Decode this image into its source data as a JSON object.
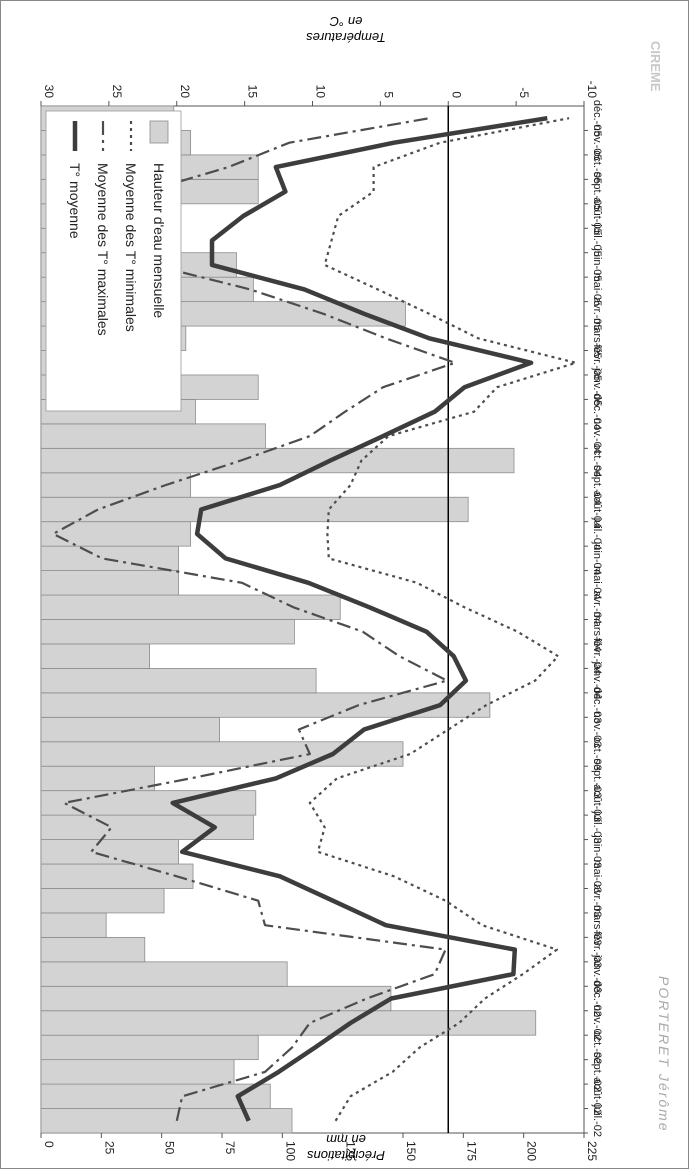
{
  "credit": "PORTERET Jérôme",
  "logo_text": "CIREME",
  "colors": {
    "bar_fill": "#d3d3d3",
    "bar_stroke": "#8c8c8c",
    "line_dark": "#3d3d3d",
    "line_dash": "#4d4d4d",
    "axis": "#555555",
    "frame": "#888888"
  },
  "chart_data": {
    "type": "bar+line",
    "orientation": "rotated 90 degrees clockwise (categories run from bottom to top)",
    "categories": [
      "juil.-02",
      "août-02",
      "sept.-02",
      "oct.-02",
      "nov.-02",
      "déc.-02",
      "janv.-03",
      "févr.-03",
      "mars-03",
      "avr.-03",
      "mai-03",
      "juin-03",
      "juil.-03",
      "août-03",
      "sept.-03",
      "oct.-03",
      "nov.-03",
      "déc.-03",
      "janv.-04",
      "févr.-04",
      "mars-04",
      "avr.-04",
      "mai-04",
      "juin-04",
      "juil.-04",
      "août-04",
      "sept.-04",
      "oct.-04",
      "nov.-04",
      "déc.-04",
      "janv.-05",
      "févr.-05",
      "mars-05",
      "avr.-05",
      "mai-05",
      "juin-05",
      "juil.-05",
      "août-05",
      "sept.-05",
      "oct.-05",
      "nov.-05",
      "déc.-05"
    ],
    "left_axis": {
      "label_line1": "Précipitations",
      "label_line2": "en mm",
      "min": 0,
      "max": 225,
      "ticks": [
        0,
        25,
        50,
        75,
        100,
        125,
        150,
        175,
        200,
        225
      ]
    },
    "right_axis": {
      "label_line1": "Températures",
      "label_line2": "en °C",
      "min": -10,
      "max": 30,
      "ticks": [
        -10,
        -5,
        0,
        5,
        10,
        15,
        20,
        25,
        30
      ]
    },
    "zero_line_celsius": 0,
    "grid": false,
    "legend_placement": "top-right",
    "series": [
      {
        "name": "Hauteur d'eau mensuelle",
        "kind": "bar",
        "axis": "left",
        "values": [
          104,
          95,
          80,
          90,
          205,
          145,
          102,
          43,
          27,
          51,
          63,
          57,
          88,
          89,
          47,
          150,
          74,
          186,
          114,
          45,
          105,
          124,
          57,
          57,
          62,
          177,
          62,
          196,
          93,
          64,
          90,
          48,
          60,
          151,
          88,
          81,
          35,
          43,
          90,
          90,
          62,
          55
        ]
      },
      {
        "name": "Moyenne des T° minimales",
        "kind": "line",
        "style": "dotted",
        "axis": "right",
        "values": [
          8.3,
          7.2,
          4.1,
          2.1,
          -0.8,
          -2.7,
          -5.5,
          -8,
          -2.5,
          0.2,
          4,
          9.6,
          9.1,
          10.2,
          8.2,
          2.8,
          0,
          -2.8,
          -6.4,
          -8.1,
          -5.1,
          -1.2,
          2.3,
          8.8,
          8.9,
          8.8,
          7.2,
          6.4,
          4.4,
          -1.9,
          -3.6,
          -9.4,
          -2.2,
          1.4,
          5.2,
          9.1,
          8.6,
          8.1,
          5.5,
          5.5,
          0.6,
          -8.9
        ]
      },
      {
        "name": "Moyenne des T° maximales",
        "kind": "line",
        "style": "dash-dot",
        "axis": "right",
        "values": [
          20,
          19.6,
          13.5,
          11.5,
          10.2,
          6,
          1,
          0.2,
          13.5,
          14,
          20,
          26.3,
          24.8,
          28.3,
          19,
          10.2,
          11,
          6.6,
          0.1,
          3.6,
          6.3,
          11.4,
          15.2,
          25.5,
          29.1,
          25.8,
          20.8,
          15.3,
          10.2,
          7.6,
          4.8,
          -0.5,
          4.6,
          9.2,
          14.6,
          21.8,
          25.7,
          22.3,
          22.3,
          16.2,
          11.7,
          1.4
        ]
      },
      {
        "name": "T° moyenne",
        "kind": "line",
        "style": "solid",
        "axis": "right",
        "values": [
          14.7,
          15.5,
          12.5,
          9.8,
          7.2,
          4.2,
          -4.8,
          -4.9,
          4.6,
          8.5,
          12.4,
          19.6,
          17.2,
          20.3,
          12.7,
          8.5,
          6.2,
          0.6,
          -1.3,
          -0.4,
          1.6,
          5.8,
          10.3,
          16.4,
          18.5,
          18.2,
          12.4,
          8.7,
          4.8,
          1,
          -1.2,
          -6.1,
          1.4,
          6.2,
          10.6,
          17.4,
          17.4,
          15.1,
          12,
          12.7,
          4,
          -7.3
        ]
      }
    ]
  }
}
